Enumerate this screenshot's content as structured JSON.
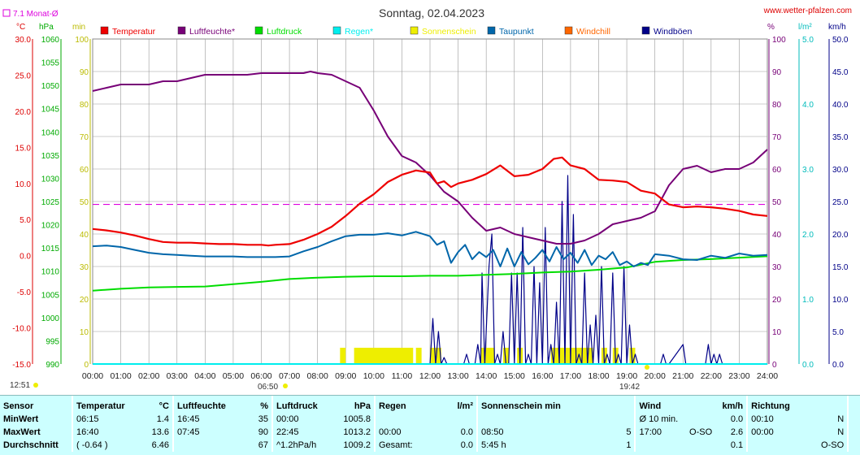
{
  "title": "Sonntag, 02.04.2023",
  "site": "www.wetter-pfalzen.com",
  "monat_avg_label": "7.1 Monat-Ø",
  "sunrise": "06:50",
  "sunset": "19:42",
  "current_time": "12:51",
  "colors": {
    "temperatur": "#ee0000",
    "luftfeuchte": "#770077",
    "luftdruck": "#00dd00",
    "regen": "#00eeee",
    "sonnenschein": "#eeee00",
    "taupunkt": "#0066aa",
    "windchill": "#ff6600",
    "windboeen": "#000088",
    "monat_avg": "#dd00dd"
  },
  "units": {
    "c": "°C",
    "hpa": "hPa",
    "min": "min",
    "pct": "%",
    "lm2": "l/m²",
    "kmh": "km/h"
  },
  "stats": {
    "headers": {
      "sensor": "Sensor",
      "temperatur": "Temperatur",
      "temp_unit": "°C",
      "luftfeuchte": "Luftfeuchte",
      "lf_unit": "%",
      "luftdruck": "Luftdruck",
      "ld_unit": "hPa",
      "regen": "Regen",
      "regen_unit": "l/m²",
      "sonne": "Sonnenschein min",
      "wind": "Wind",
      "wind_unit": "km/h",
      "richtung": "Richtung"
    },
    "rows": [
      {
        "label": "MinWert",
        "t_time": "06:15",
        "t_val": "1.4",
        "lf_time": "16:45",
        "lf_val": "35",
        "ld_time": "00:00",
        "ld_val": "1005.8",
        "r_time": "",
        "r_val": "",
        "s_time": "",
        "s_val": "",
        "w_time": "Ø 10 min.",
        "w_dir": "",
        "w_val": "0.0",
        "d_time": "00:10",
        "d_val": "N"
      },
      {
        "label": "MaxWert",
        "t_time": "16:40",
        "t_val": "13.6",
        "lf_time": "07:45",
        "lf_val": "90",
        "ld_time": "22:45",
        "ld_val": "1013.2",
        "r_time": "00:00",
        "r_val": "0.0",
        "s_time": "08:50",
        "s_val": "5",
        "w_time": "17:00",
        "w_dir": "O-SO",
        "w_val": "2.6",
        "d_time": "00:00",
        "d_val": "N"
      },
      {
        "label": "Durchschnitt",
        "t_time": "( -0.64 )",
        "t_val": "6.46",
        "lf_time": "",
        "lf_val": "67",
        "ld_time": "^1.2hPa/h",
        "ld_val": "1009.2",
        "r_time": "Gesamt:",
        "r_val": "0.0",
        "s_time": "5:45 h",
        "s_val": "1",
        "w_time": "",
        "w_dir": "",
        "w_val": "0.1",
        "d_time": "",
        "d_val": "O-SO"
      }
    ]
  },
  "chart_data": {
    "type": "line",
    "title": "Sonntag, 02.04.2023",
    "xlim": [
      0,
      24
    ],
    "x_tick_labels": [
      "00:00",
      "01:00",
      "02:00",
      "03:00",
      "04:00",
      "05:00",
      "06:00",
      "07:00",
      "08:00",
      "09:00",
      "10:00",
      "11:00",
      "12:00",
      "13:00",
      "14:00",
      "15:00",
      "16:00",
      "17:00",
      "18:00",
      "19:00",
      "20:00",
      "21:00",
      "22:00",
      "23:00",
      "24:00"
    ],
    "grid": true,
    "axes": {
      "temp_c": {
        "ylim": [
          -15,
          30
        ],
        "ticks": [
          "30.0",
          "25.0",
          "20.0",
          "15.0",
          "10.0",
          "5.0",
          "0.0",
          "-5.0",
          "-10.0",
          "-15.0"
        ]
      },
      "pressure": {
        "ylim": [
          990,
          1060
        ],
        "ticks": [
          "1060",
          "1055",
          "1050",
          "1045",
          "1040",
          "1035",
          "1030",
          "1025",
          "1020",
          "1015",
          "1010",
          "1005",
          "1000",
          "995",
          "990"
        ]
      },
      "sun_min": {
        "ylim": [
          0,
          100
        ],
        "ticks": [
          "100",
          "90",
          "80",
          "70",
          "60",
          "50",
          "40",
          "30",
          "20",
          "10",
          "0"
        ]
      },
      "humidity": {
        "ylim": [
          0,
          100
        ],
        "ticks": [
          "100",
          "90",
          "80",
          "70",
          "60",
          "50",
          "40",
          "30",
          "20",
          "10",
          "0"
        ]
      },
      "rain": {
        "ylim": [
          0,
          5
        ],
        "ticks": [
          "5.0",
          "4.0",
          "3.0",
          "2.0",
          "1.0",
          "0.0"
        ]
      },
      "wind": {
        "ylim": [
          0,
          50
        ],
        "ticks": [
          "50.0",
          "45.0",
          "40.0",
          "35.0",
          "30.0",
          "25.0",
          "20.0",
          "15.0",
          "10.0",
          "5.0",
          "0.0"
        ]
      }
    },
    "monat_avg_temp": 7.1,
    "series": [
      {
        "name": "Temperatur",
        "axis": "temp_c",
        "color": "#ee0000",
        "x": [
          0,
          0.5,
          1,
          1.5,
          2,
          2.5,
          3,
          3.5,
          4,
          4.5,
          5,
          5.5,
          6,
          6.25,
          6.5,
          7,
          7.5,
          8,
          8.5,
          9,
          9.5,
          10,
          10.5,
          11,
          11.5,
          12,
          12.25,
          12.5,
          12.75,
          13,
          13.5,
          14,
          14.5,
          15,
          15.5,
          16,
          16.4,
          16.7,
          17,
          17.5,
          18,
          18.5,
          19,
          19.5,
          20,
          20.5,
          21,
          21.5,
          22,
          22.5,
          23,
          23.5,
          24
        ],
        "y": [
          3.7,
          3.5,
          3.2,
          2.8,
          2.3,
          1.9,
          1.8,
          1.8,
          1.7,
          1.6,
          1.6,
          1.5,
          1.5,
          1.4,
          1.5,
          1.6,
          2.2,
          3.0,
          4.0,
          5.5,
          7.2,
          8.5,
          10.2,
          11.2,
          11.8,
          11.5,
          10.0,
          10.3,
          9.5,
          10.0,
          10.5,
          11.3,
          12.5,
          11.0,
          11.2,
          12.0,
          13.4,
          13.6,
          12.5,
          12.0,
          10.5,
          10.4,
          10.2,
          9.0,
          8.6,
          7.1,
          6.7,
          6.8,
          6.7,
          6.5,
          6.2,
          5.7,
          5.5
        ]
      },
      {
        "name": "Luftfeuchte*",
        "axis": "humidity",
        "color": "#770077",
        "x": [
          0,
          0.5,
          1,
          1.5,
          2,
          2.5,
          3,
          3.5,
          4,
          4.5,
          5,
          5.5,
          6,
          6.5,
          7,
          7.5,
          7.75,
          8,
          8.5,
          9,
          9.5,
          10,
          10.5,
          11,
          11.5,
          12,
          12.5,
          13,
          13.5,
          14,
          14.5,
          15,
          15.5,
          16,
          16.5,
          17,
          17.5,
          18,
          18.5,
          19,
          19.5,
          20,
          20.5,
          21,
          21.5,
          22,
          22.5,
          23,
          23.5,
          24
        ],
        "y": [
          84,
          85,
          86,
          86,
          86,
          87,
          87,
          88,
          89,
          89,
          89,
          89,
          89.5,
          89.5,
          89.5,
          89.5,
          90,
          89.5,
          89,
          87,
          85,
          78,
          70,
          64,
          62,
          58,
          53,
          50,
          45,
          41,
          42,
          40,
          39,
          38,
          37,
          37,
          38,
          40,
          43,
          44,
          45,
          47,
          55,
          60,
          61,
          59,
          60,
          60,
          62,
          66
        ]
      },
      {
        "name": "Luftdruck",
        "axis": "pressure",
        "color": "#00dd00",
        "x": [
          0,
          1,
          2,
          3,
          4,
          5,
          6,
          7,
          8,
          9,
          10,
          11,
          12,
          13,
          14,
          15,
          16,
          17,
          18,
          19,
          20,
          21,
          22,
          23,
          24
        ],
        "y": [
          1005.8,
          1006.2,
          1006.5,
          1006.6,
          1006.7,
          1007.2,
          1007.7,
          1008.3,
          1008.6,
          1008.8,
          1008.9,
          1008.9,
          1009.0,
          1009.0,
          1009.2,
          1009.4,
          1009.7,
          1009.9,
          1010.3,
          1010.8,
          1012.0,
          1012.4,
          1012.6,
          1012.9,
          1013.2
        ]
      },
      {
        "name": "Regen*",
        "axis": "rain",
        "color": "#00eeee",
        "note": "0.0 l/m²",
        "x": [
          0,
          24
        ],
        "y": [
          0,
          0
        ]
      },
      {
        "name": "Sonnenschein",
        "axis": "sun_min",
        "color": "#eeee00",
        "bars": [
          [
            8.8,
            9.0
          ],
          [
            9.3,
            11.4
          ],
          [
            11.5,
            11.7
          ],
          [
            12.0,
            12.4
          ],
          [
            13.8,
            14.3
          ],
          [
            14.6,
            14.8
          ],
          [
            15.1,
            15.3
          ],
          [
            16.3,
            17.8
          ],
          [
            18.1,
            18.3
          ],
          [
            18.5,
            18.7
          ],
          [
            19.1,
            19.3
          ]
        ]
      },
      {
        "name": "Taupunkt",
        "axis": "temp_c",
        "color": "#0066aa",
        "x": [
          0,
          0.5,
          1,
          1.5,
          2,
          2.5,
          3,
          3.5,
          4,
          4.5,
          5,
          5.5,
          6,
          6.5,
          7,
          7.5,
          8,
          8.5,
          9,
          9.5,
          10,
          10.5,
          11,
          11.5,
          12,
          12.25,
          12.5,
          12.75,
          13,
          13.25,
          13.5,
          13.75,
          14,
          14.25,
          14.5,
          14.75,
          15,
          15.25,
          15.5,
          15.75,
          16,
          16.25,
          16.5,
          16.75,
          17,
          17.25,
          17.5,
          17.75,
          18,
          18.25,
          18.5,
          18.75,
          19,
          19.25,
          19.5,
          19.75,
          20,
          20.5,
          21,
          21.5,
          22,
          22.5,
          23,
          23.5,
          24
        ],
        "y": [
          1.3,
          1.4,
          1.2,
          0.8,
          0.4,
          0.2,
          0.1,
          0.0,
          -0.1,
          -0.1,
          -0.1,
          -0.2,
          -0.2,
          -0.2,
          -0.1,
          0.6,
          1.2,
          2.0,
          2.7,
          2.9,
          2.9,
          3.1,
          2.8,
          3.3,
          2.7,
          1.5,
          2.0,
          -1.0,
          0.5,
          1.5,
          -0.5,
          0.5,
          -0.2,
          0.8,
          -1.5,
          1.0,
          -1.5,
          0.5,
          -1.2,
          -0.3,
          0.8,
          -0.8,
          1.2,
          -0.5,
          0.4,
          -1.0,
          0.8,
          -1.3,
          0.0,
          -0.5,
          0.5,
          -1.3,
          -0.8,
          -1.5,
          -1.0,
          -1.3,
          0.2,
          0.0,
          -0.5,
          -0.6,
          0.0,
          -0.3,
          0.3,
          0.0,
          0.1
        ]
      },
      {
        "name": "Windchill",
        "axis": "temp_c",
        "color": "#ff6600",
        "x": [
          0,
          6,
          6.25,
          7,
          8,
          9,
          10,
          11,
          12,
          13,
          14,
          15,
          16,
          16.7,
          17,
          18,
          19,
          20,
          21,
          22,
          23,
          24
        ],
        "y": [
          3.7,
          1.5,
          1.4,
          1.6,
          3.0,
          5.5,
          8.5,
          11.2,
          11.5,
          10.0,
          11.3,
          11.0,
          12.0,
          13.6,
          12.5,
          10.5,
          10.2,
          8.6,
          6.7,
          6.7,
          6.2,
          5.5
        ]
      },
      {
        "name": "Windböen",
        "axis": "wind",
        "color": "#000088",
        "x": [
          12.0,
          12.1,
          12.2,
          12.3,
          12.4,
          12.5,
          12.6,
          13.2,
          13.3,
          13.4,
          13.6,
          13.7,
          13.8,
          13.85,
          13.95,
          14.1,
          14.2,
          14.3,
          14.4,
          14.5,
          14.6,
          14.7,
          14.8,
          14.9,
          15.0,
          15.1,
          15.2,
          15.3,
          15.4,
          15.5,
          15.6,
          15.7,
          15.8,
          15.9,
          16.0,
          16.1,
          16.2,
          16.3,
          16.4,
          16.5,
          16.6,
          16.7,
          16.8,
          16.9,
          17.0,
          17.1,
          17.2,
          17.3,
          17.4,
          17.5,
          17.6,
          17.7,
          17.8,
          17.9,
          18.0,
          18.1,
          18.2,
          18.3,
          18.4,
          18.5,
          18.6,
          18.7,
          18.8,
          18.9,
          19.0,
          19.1,
          19.2,
          19.3,
          19.4,
          20.2,
          20.3,
          20.4,
          20.5,
          21.0,
          21.1,
          21.2,
          21.3,
          21.4,
          21.8,
          21.9,
          22.0,
          22.1,
          22.2,
          22.3,
          22.4
        ],
        "y": [
          0,
          7,
          0,
          5,
          0,
          1,
          0,
          0,
          1.5,
          0,
          0,
          3,
          0,
          14,
          0,
          15,
          20,
          0,
          1.5,
          0,
          5,
          0,
          0,
          14,
          0,
          14,
          0,
          21,
          0,
          1.5,
          0,
          15,
          0,
          12.5,
          0,
          21,
          0,
          3,
          0,
          9.5,
          0,
          25,
          0,
          29,
          0,
          23,
          0,
          1.5,
          0,
          14,
          0,
          6,
          0,
          7.5,
          0,
          15,
          0,
          1.5,
          0,
          14,
          0,
          1.5,
          0,
          15,
          0,
          6,
          0,
          1.5,
          0,
          0,
          1.5,
          0,
          0,
          3,
          0,
          0,
          0,
          0,
          0,
          3,
          0,
          1.5,
          0,
          1.5,
          0
        ]
      }
    ]
  }
}
